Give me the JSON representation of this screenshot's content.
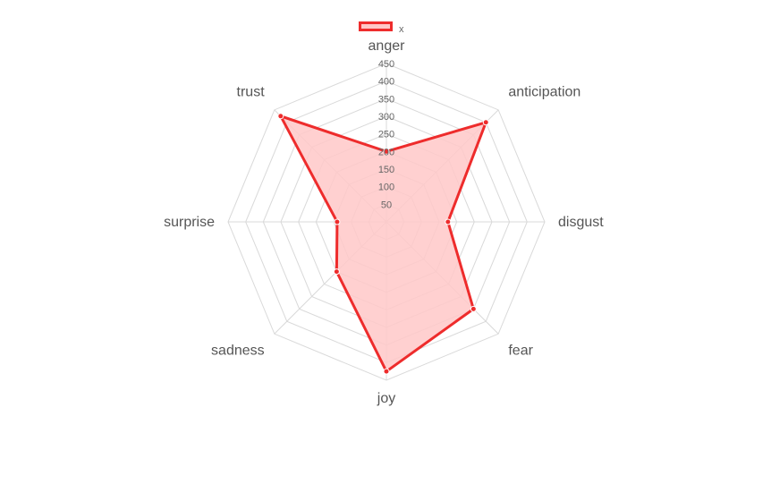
{
  "chart_data": {
    "type": "radar",
    "title": "",
    "categories": [
      "anger",
      "anticipation",
      "disgust",
      "fear",
      "joy",
      "sadness",
      "surprise",
      "trust"
    ],
    "series": [
      {
        "name": "x",
        "values": [
          200,
          400,
          175,
          350,
          425,
          200,
          140,
          425
        ]
      }
    ],
    "rlim": [
      0,
      450
    ],
    "ticks": [
      50,
      100,
      150,
      200,
      250,
      300,
      350,
      400,
      450
    ],
    "grid": true,
    "legend_position": "top",
    "colors": {
      "line": "#ee2c2c",
      "fill": "#ffc8c8",
      "grid": "#d9d9d9"
    }
  }
}
